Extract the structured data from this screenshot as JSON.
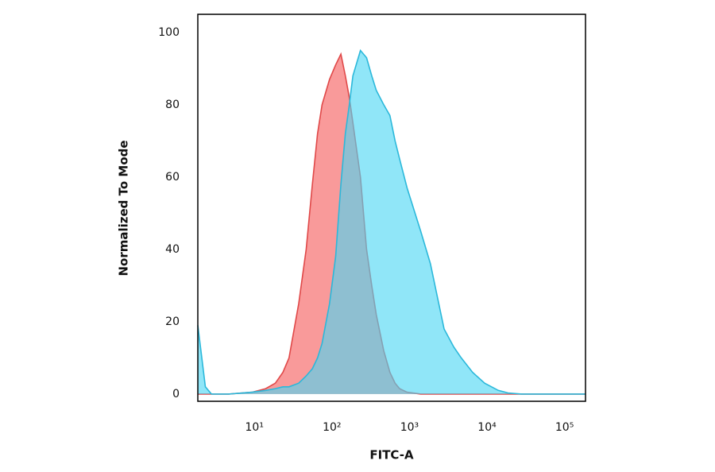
{
  "chart_data": {
    "type": "area",
    "x_label": "FITC-A",
    "y_label": "Normalized To Mode",
    "x_scale": "log",
    "x": [
      2,
      2.5,
      3,
      5,
      10,
      15,
      20,
      25,
      30,
      40,
      50,
      60,
      70,
      80,
      100,
      120,
      140,
      160,
      180,
      200,
      250,
      300,
      350,
      400,
      500,
      600,
      700,
      800,
      1000,
      1500,
      2000,
      3000,
      4000,
      5000,
      7000,
      10000,
      15000,
      20000,
      30000,
      200000
    ],
    "series": [
      {
        "color": "#e04848",
        "fill": "#f99a9a",
        "values": [
          0,
          0,
          0,
          0,
          0.5,
          1.5,
          3,
          6,
          10,
          25,
          40,
          58,
          72,
          80,
          87,
          91,
          94,
          88,
          82,
          75,
          60,
          40,
          30,
          22,
          12,
          6,
          3,
          1.5,
          0.5,
          0,
          0,
          0,
          0,
          0,
          0,
          0,
          0,
          0,
          0,
          0
        ]
      },
      {
        "color": "#2bb8da",
        "fill": "#4cd6f4",
        "values": [
          19,
          2,
          0,
          0,
          0.5,
          1,
          1.5,
          2,
          2,
          3,
          5,
          7,
          10,
          14,
          25,
          38,
          58,
          72,
          80,
          88,
          95,
          93,
          88,
          84,
          80,
          77,
          70,
          65,
          57,
          45,
          36,
          18,
          13,
          10,
          6,
          3,
          1,
          0.3,
          0,
          0
        ]
      }
    ],
    "xlim": [
      2,
      200000
    ],
    "xticks": [
      {
        "value": 10,
        "label": "10¹"
      },
      {
        "value": 100,
        "label": "10²"
      },
      {
        "value": 1000,
        "label": "10³"
      },
      {
        "value": 10000,
        "label": "10⁴"
      },
      {
        "value": 100000,
        "label": "10⁵"
      }
    ],
    "ylim": [
      -2,
      105
    ],
    "yticks": [
      0,
      20,
      40,
      60,
      80,
      100
    ]
  }
}
